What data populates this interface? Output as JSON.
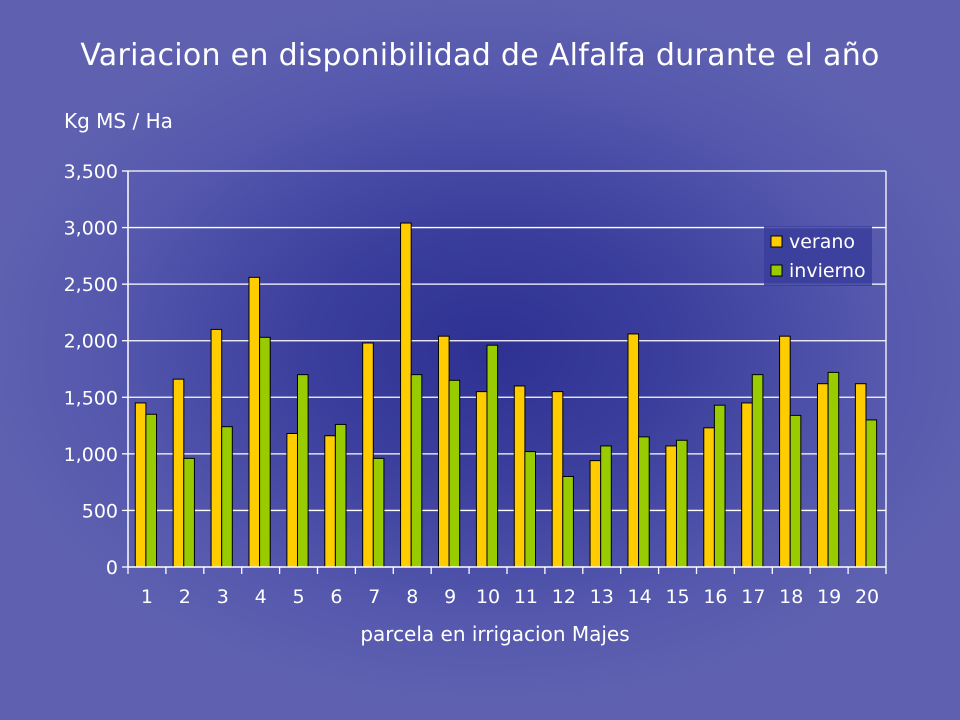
{
  "chart_data": {
    "type": "bar",
    "title": "Variacion en disponibilidad de Alfalfa durante el año",
    "ylabel": "Kg MS / Ha",
    "xlabel": "parcela en irrigacion Majes",
    "ylim": [
      0,
      3500
    ],
    "yticks": [
      "0",
      "500",
      "1,000",
      "1,500",
      "2,000",
      "2,500",
      "3,000",
      "3,500"
    ],
    "ytick_values": [
      0,
      500,
      1000,
      1500,
      2000,
      2500,
      3000,
      3500
    ],
    "grid": true,
    "legend_position": "top-right",
    "categories": [
      "1",
      "2",
      "3",
      "4",
      "5",
      "6",
      "7",
      "8",
      "9",
      "10",
      "11",
      "12",
      "13",
      "14",
      "15",
      "16",
      "17",
      "18",
      "19",
      "20"
    ],
    "series": [
      {
        "name": "verano",
        "color": "#ffcc00",
        "values": [
          1450,
          1660,
          2100,
          2560,
          1180,
          1160,
          1980,
          3040,
          2040,
          1550,
          1600,
          1550,
          940,
          2060,
          1070,
          1230,
          1450,
          2040,
          1620,
          1620
        ]
      },
      {
        "name": "invierno",
        "color": "#99cc00",
        "values": [
          1350,
          960,
          1240,
          2030,
          1700,
          1260,
          960,
          1700,
          1650,
          1960,
          1020,
          800,
          1070,
          1150,
          1120,
          1430,
          1700,
          1340,
          1720,
          1300
        ]
      }
    ]
  }
}
